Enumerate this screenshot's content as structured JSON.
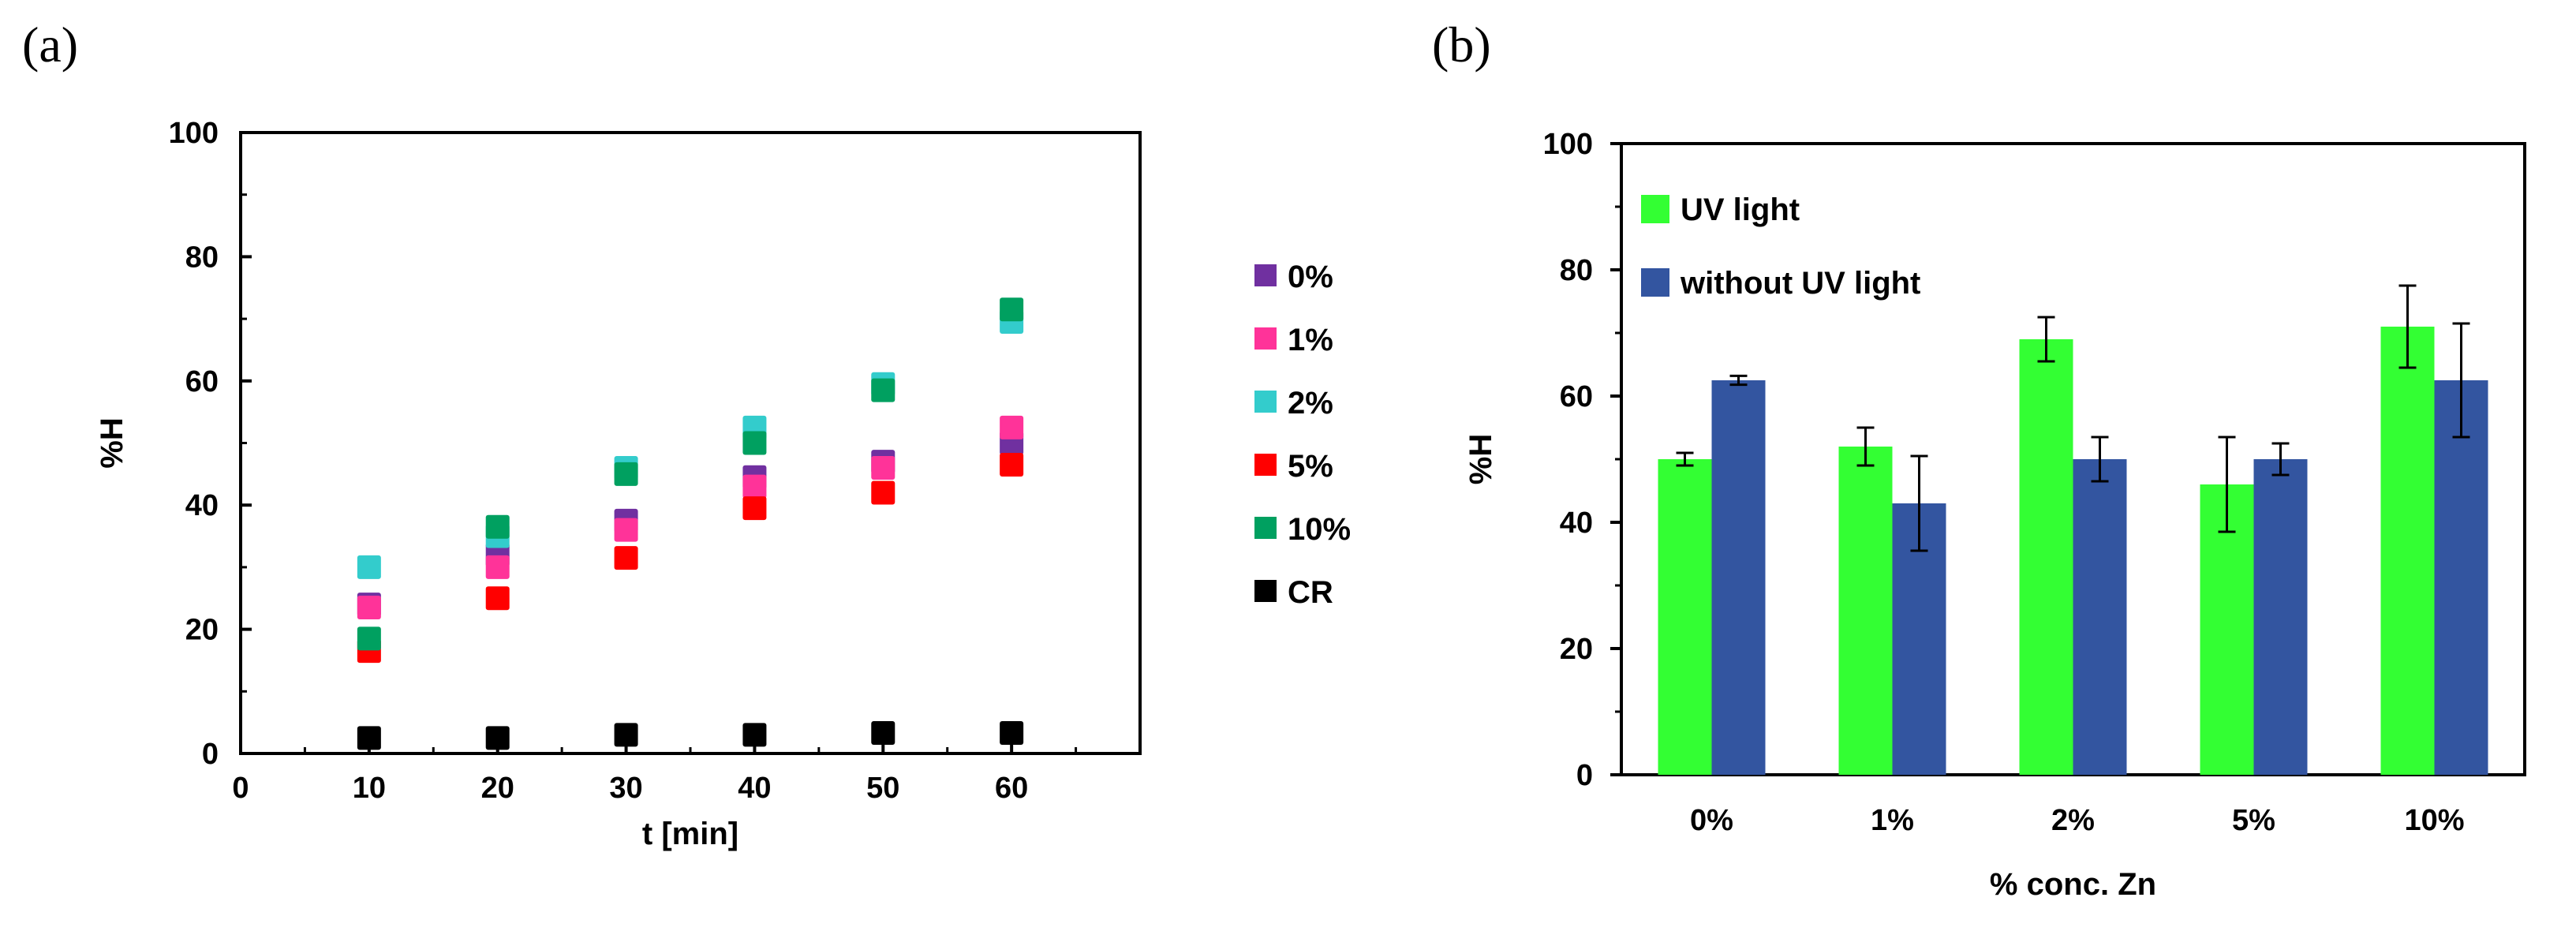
{
  "panel_a_label": "(a)",
  "panel_b_label": "(b)",
  "chart_data": [
    {
      "type": "scatter",
      "panel": "(a)",
      "title": "",
      "xlabel": "t [min]",
      "ylabel": "%H",
      "xlim": [
        0,
        70
      ],
      "ylim": [
        0,
        100
      ],
      "xticks": [
        "0",
        "10",
        "20",
        "30",
        "40",
        "50",
        "60"
      ],
      "yticks": [
        "0",
        "20",
        "40",
        "60",
        "80",
        "100"
      ],
      "legend_position": "right",
      "x": [
        10,
        20,
        30,
        40,
        50,
        60
      ],
      "series": [
        {
          "name": "0%",
          "color": "#7030A0",
          "values": [
            24,
            32,
            37.5,
            44.5,
            47,
            50
          ]
        },
        {
          "name": "1%",
          "color": "#FF3399",
          "values": [
            23.5,
            30,
            36,
            43,
            46,
            52.5
          ]
        },
        {
          "name": "2%",
          "color": "#33CCCC",
          "values": [
            30,
            35,
            46,
            52.5,
            59.5,
            69.5
          ]
        },
        {
          "name": "5%",
          "color": "#FF0000",
          "values": [
            16.5,
            25,
            31.5,
            39.5,
            42,
            46.5
          ]
        },
        {
          "name": "10%",
          "color": "#00A060",
          "values": [
            18.5,
            36.5,
            45,
            50,
            58.5,
            71.5
          ]
        },
        {
          "name": "CR",
          "color": "#000000",
          "values": [
            2.5,
            2.5,
            3,
            3,
            3.3,
            3.3
          ]
        }
      ]
    },
    {
      "type": "bar",
      "panel": "(b)",
      "title": "",
      "xlabel": "% conc. Zn",
      "ylabel": "%H",
      "ylim": [
        0,
        100
      ],
      "yticks": [
        "0",
        "20",
        "40",
        "60",
        "80",
        "100"
      ],
      "categories": [
        "0%",
        "1%",
        "2%",
        "5%",
        "10%"
      ],
      "legend_position": "top-left",
      "series": [
        {
          "name": "UV light",
          "color": "#33FF33",
          "values": [
            50,
            52,
            69,
            46,
            71
          ],
          "errors": [
            1,
            3,
            3.5,
            7.5,
            6.5
          ]
        },
        {
          "name": "without UV light",
          "color": "#3355A0",
          "values": [
            62.5,
            43,
            50,
            50,
            62.5
          ],
          "errors": [
            0.7,
            7.5,
            3.5,
            2.5,
            9
          ]
        }
      ]
    }
  ]
}
